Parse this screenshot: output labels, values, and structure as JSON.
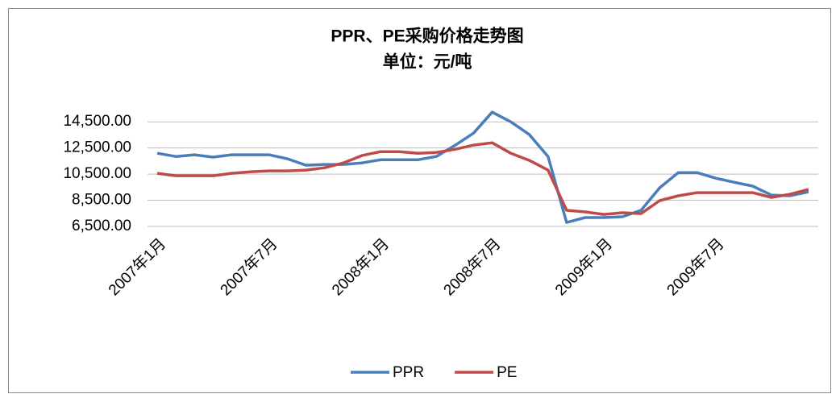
{
  "chart_data": {
    "type": "line",
    "title": "PPR、PE采购价格走势图",
    "subtitle": "单位：元/吨",
    "categories": [
      "2007年1月",
      null,
      null,
      null,
      null,
      null,
      "2007年7月",
      null,
      null,
      null,
      null,
      null,
      "2008年1月",
      null,
      null,
      null,
      null,
      null,
      "2008年7月",
      null,
      null,
      null,
      null,
      null,
      "2009年1月",
      null,
      null,
      null,
      null,
      null,
      "2009年7月",
      null,
      null,
      null,
      null,
      null
    ],
    "series": [
      {
        "name": "PPR",
        "color": "#4a7ebb",
        "values": [
          12100,
          11850,
          11980,
          11800,
          11980,
          11980,
          11980,
          11670,
          11180,
          11240,
          11240,
          11360,
          11600,
          11600,
          11600,
          11850,
          12700,
          13640,
          15240,
          14500,
          13520,
          11850,
          6800,
          7180,
          7180,
          7240,
          7730,
          9450,
          10620,
          10620,
          10190,
          9880,
          9580,
          8900,
          8840,
          9150
        ]
      },
      {
        "name": "PE",
        "color": "#be4b48",
        "values": [
          10560,
          10380,
          10380,
          10380,
          10560,
          10680,
          10750,
          10750,
          10810,
          10990,
          11360,
          11920,
          12220,
          12220,
          12100,
          12160,
          12400,
          12720,
          12900,
          12100,
          11550,
          10810,
          7730,
          7610,
          7420,
          7550,
          7480,
          8470,
          8840,
          9080,
          9080,
          9080,
          9080,
          8720,
          8960,
          9330
        ]
      }
    ],
    "ylim": [
      6500,
      15500
    ],
    "yticks": [
      {
        "value": 6500,
        "label": "6,500.00"
      },
      {
        "value": 8500,
        "label": "8,500.00"
      },
      {
        "value": 10500,
        "label": "10,500.00"
      },
      {
        "value": 12500,
        "label": "12,500.00"
      },
      {
        "value": 14500,
        "label": "14,500.00"
      }
    ],
    "grid": true,
    "legend": "bottom"
  }
}
